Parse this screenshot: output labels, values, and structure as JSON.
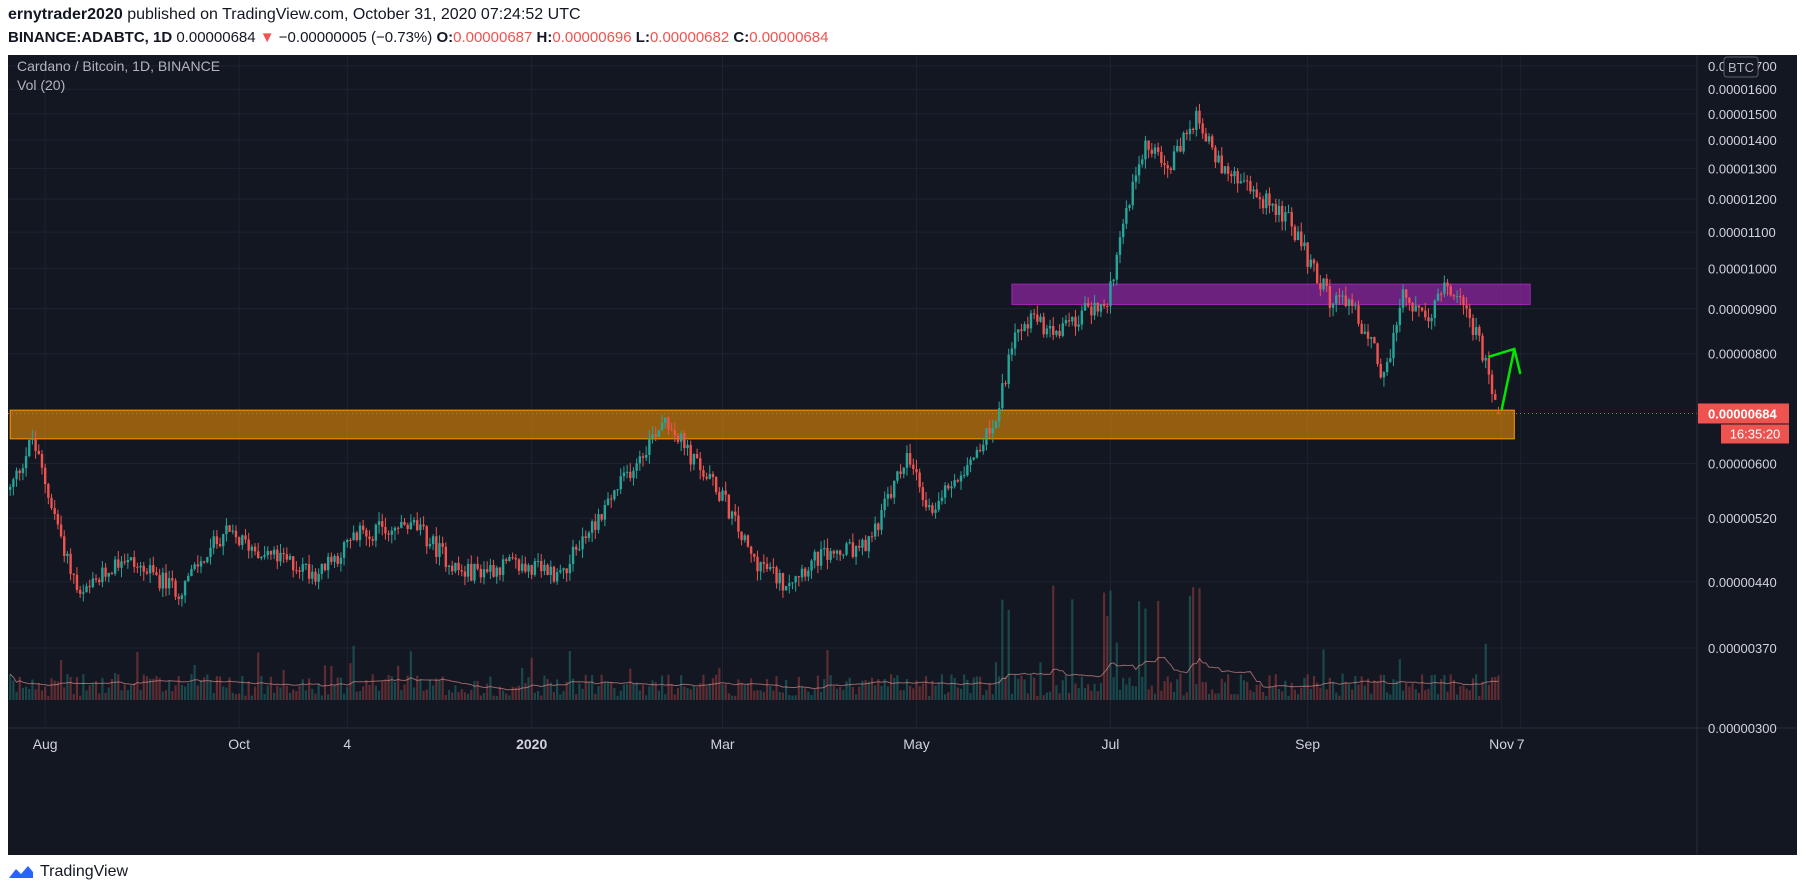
{
  "header": {
    "user": "ernytrader2020",
    "published_text": "published on TradingView.com, October 31, 2020 07:24:52 UTC",
    "symbol_line": "BINANCE:ADABTC, 1D",
    "last": "0.00000684",
    "change": "−0.00000005 (−0.73%)",
    "o_label": "O:",
    "o_value": "0.00000687",
    "h_label": "H:",
    "h_value": "0.00000696",
    "l_label": "L:",
    "l_value": "0.00000682",
    "c_label": "C:",
    "c_value": "0.00000684"
  },
  "chart": {
    "title": "Cardano / Bitcoin, 1D, BINANCE",
    "volume_label": "Vol (20)",
    "currency_badge": "BTC",
    "price_badge": "0.00000684",
    "countdown_badge": "16:35:20",
    "price_ticks": [
      "0.00001700",
      "0.00001600",
      "0.00001500",
      "0.00001400",
      "0.00001300",
      "0.00001200",
      "0.00001100",
      "0.00001000",
      "0.00000900",
      "0.00000800",
      "0.00000600",
      "0.00000520",
      "0.00000440",
      "0.00000370",
      "0.00000300"
    ],
    "time_ticks": [
      "Aug",
      "Oct",
      "4",
      "2020",
      "Mar",
      "May",
      "Jul",
      "Sep",
      "Nov",
      "7"
    ],
    "colors": {
      "background": "#131722",
      "up": "#26a69a",
      "down": "#ef5350",
      "support_zone": "#ff9800",
      "resistance_zone": "#9c27b0",
      "arrow": "#00e600"
    }
  },
  "footer": {
    "brand": "TradingView"
  },
  "chart_data": {
    "type": "candlestick",
    "title": "Cardano / Bitcoin, 1D, BINANCE",
    "symbol": "BINANCE:ADABTC",
    "y_scale": "log",
    "ylim": [
      3e-06,
      1.75e-05
    ],
    "x_range": [
      "2019-07-20",
      "2020-11-12"
    ],
    "price_path": {
      "dates": [
        "2019-07-21",
        "2019-07-28",
        "2019-08-05",
        "2019-08-12",
        "2019-08-25",
        "2019-09-12",
        "2019-09-26",
        "2019-10-12",
        "2019-10-26",
        "2019-11-08",
        "2019-11-25",
        "2019-12-10",
        "2019-12-25",
        "2020-01-10",
        "2020-02-01",
        "2020-02-12",
        "2020-02-20",
        "2020-03-01",
        "2020-03-10",
        "2020-03-20",
        "2020-04-01",
        "2020-04-15",
        "2020-04-28",
        "2020-05-05",
        "2020-05-15",
        "2020-05-25",
        "2020-06-02",
        "2020-06-08",
        "2020-06-14",
        "2020-06-20",
        "2020-06-30",
        "2020-07-05",
        "2020-07-12",
        "2020-07-20",
        "2020-07-28",
        "2020-08-05",
        "2020-08-15",
        "2020-08-25",
        "2020-09-01",
        "2020-09-08",
        "2020-09-14",
        "2020-09-22",
        "2020-09-25",
        "2020-10-01",
        "2020-10-08",
        "2020-10-14",
        "2020-10-20",
        "2020-10-25",
        "2020-10-31"
      ],
      "close": [
        5.6e-06,
        6.4e-06,
        5.1e-06,
        4.2e-06,
        4.7e-06,
        4.3e-06,
        5e-06,
        4.7e-06,
        4.5e-06,
        5e-06,
        5.1e-06,
        4.5e-06,
        4.6e-06,
        4.5e-06,
        5.9e-06,
        6.8e-06,
        6.1e-06,
        5.5e-06,
        4.7e-06,
        4.4e-06,
        4.7e-06,
        4.8e-06,
        6.1e-06,
        5.3e-06,
        5.9e-06,
        6.6e-06,
        8.6e-06,
        8.8e-06,
        8.3e-06,
        8.8e-06,
        9.2e-06,
        1.12e-05,
        1.41e-05,
        1.31e-05,
        1.5e-05,
        1.3e-05,
        1.22e-05,
        1.15e-05,
        1.03e-05,
        9.2e-06,
        9.2e-06,
        8.1e-06,
        7.5e-06,
        9.3e-06,
        8.7e-06,
        9.5e-06,
        9.2e-06,
        8.2e-06,
        6.84e-06
      ]
    },
    "last_bar": {
      "date": "2020-10-31",
      "open": 6.87e-06,
      "high": 6.96e-06,
      "low": 6.82e-06,
      "close": 6.84e-06,
      "change": -5e-08,
      "change_pct": -0.73
    },
    "all_time_high_in_view": {
      "date": "2020-07-29",
      "high": 1.59e-05
    },
    "annotations": [
      {
        "type": "support_zone",
        "from": "2019-07-21",
        "to": "2020-11-05",
        "low": 6.4e-06,
        "high": 6.9e-06,
        "color": "#ff9800"
      },
      {
        "type": "resistance_zone",
        "from": "2020-05-31",
        "to": "2020-11-10",
        "low": 9.1e-06,
        "high": 9.6e-06,
        "color": "#9c27b0"
      },
      {
        "type": "arrow",
        "from": [
          "2020-11-01",
          6.9e-06
        ],
        "to": [
          "2020-11-05",
          8.1e-06
        ],
        "color": "#00e600"
      }
    ]
  }
}
